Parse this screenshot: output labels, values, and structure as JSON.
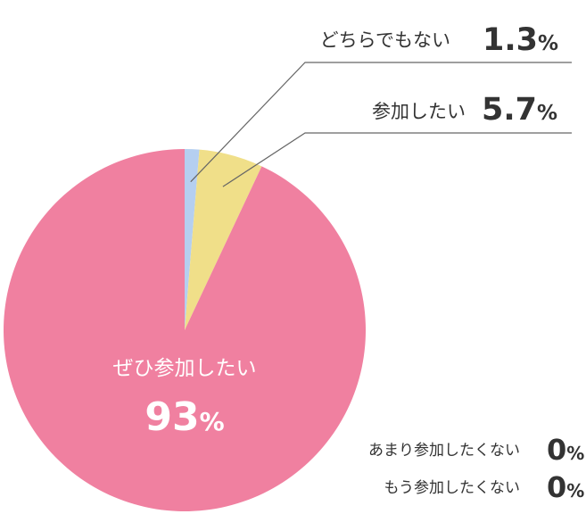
{
  "chart_data": {
    "type": "pie",
    "slices": [
      {
        "label": "どちらでもない",
        "value": 1.3,
        "display_value": "1.3",
        "unit": "%",
        "color": "#b5cff0"
      },
      {
        "label": "参加したい",
        "value": 5.7,
        "display_value": "5.7",
        "unit": "%",
        "color": "#f0df89"
      },
      {
        "label": "ぜひ参加したい",
        "value": 93,
        "display_value": "93",
        "unit": "%",
        "color": "#f080a0"
      },
      {
        "label": "あまり参加したくない",
        "value": 0,
        "display_value": "0",
        "unit": "%",
        "color": "#f5b8c8"
      },
      {
        "label": "もう参加したくない",
        "value": 0,
        "display_value": "0",
        "unit": "%",
        "color": "#d0d0d0"
      }
    ],
    "start_angle": "top",
    "direction": "clockwise",
    "leader_line_color": "#666666",
    "label_text_color": "#333333",
    "inside_label_color": "#ffffff"
  }
}
